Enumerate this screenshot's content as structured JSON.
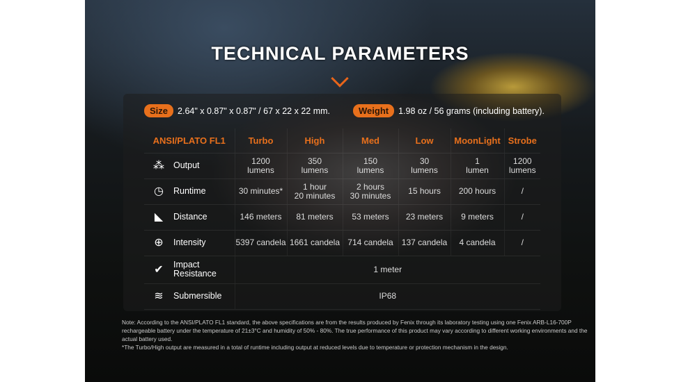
{
  "title": "TECHNICAL PARAMETERS",
  "size": {
    "label": "Size",
    "value": "2.64\" x 0.87\" x 0.87\" / 67 x 22 x 22 mm."
  },
  "weight": {
    "label": "Weight",
    "value": "1.98 oz / 56 grams (including battery)."
  },
  "table": {
    "headers": [
      "ANSI/PLATO FL1",
      "Turbo",
      "High",
      "Med",
      "Low",
      "MoonLight",
      "Strobe"
    ],
    "rows": [
      {
        "label": "Output",
        "icon": "light-burst-icon",
        "cells": [
          "1200\nlumens",
          "350\nlumens",
          "150\nlumens",
          "30\nlumens",
          "1\nlumen",
          "1200\nlumens"
        ]
      },
      {
        "label": "Runtime",
        "icon": "clock-icon",
        "cells": [
          "30 minutes*",
          "1 hour\n20 minutes",
          "2 hours\n30 minutes",
          "15 hours",
          "200 hours",
          "/"
        ]
      },
      {
        "label": "Distance",
        "icon": "beam-icon",
        "cells": [
          "146 meters",
          "81 meters",
          "53 meters",
          "23 meters",
          "9 meters",
          "/"
        ]
      },
      {
        "label": "Intensity",
        "icon": "target-icon",
        "cells": [
          "5397 candela",
          "1661 candela",
          "714 candela",
          "137 candela",
          "4 candela",
          "/"
        ]
      },
      {
        "label": "Impact Resistance",
        "icon": "impact-icon",
        "value": "1 meter"
      },
      {
        "label": "Submersible",
        "icon": "water-icon",
        "value": "IP68"
      }
    ]
  },
  "note": [
    "Note: According to the ANSI/PLATO FL1 standard, the above specifications are from the results produced by Fenix through its laboratory testing using one Fenix ARB-L16-700P rechargeable battery under the temperature of 21±3°C and humidity of 50% - 80%. The true performance of this product may vary according to different working environments and the actual battery used.",
    "*The Turbo/High output are measured in a total of runtime including output at reduced levels due to temperature or protection mechanism in the design."
  ],
  "accent": "#e8701c"
}
